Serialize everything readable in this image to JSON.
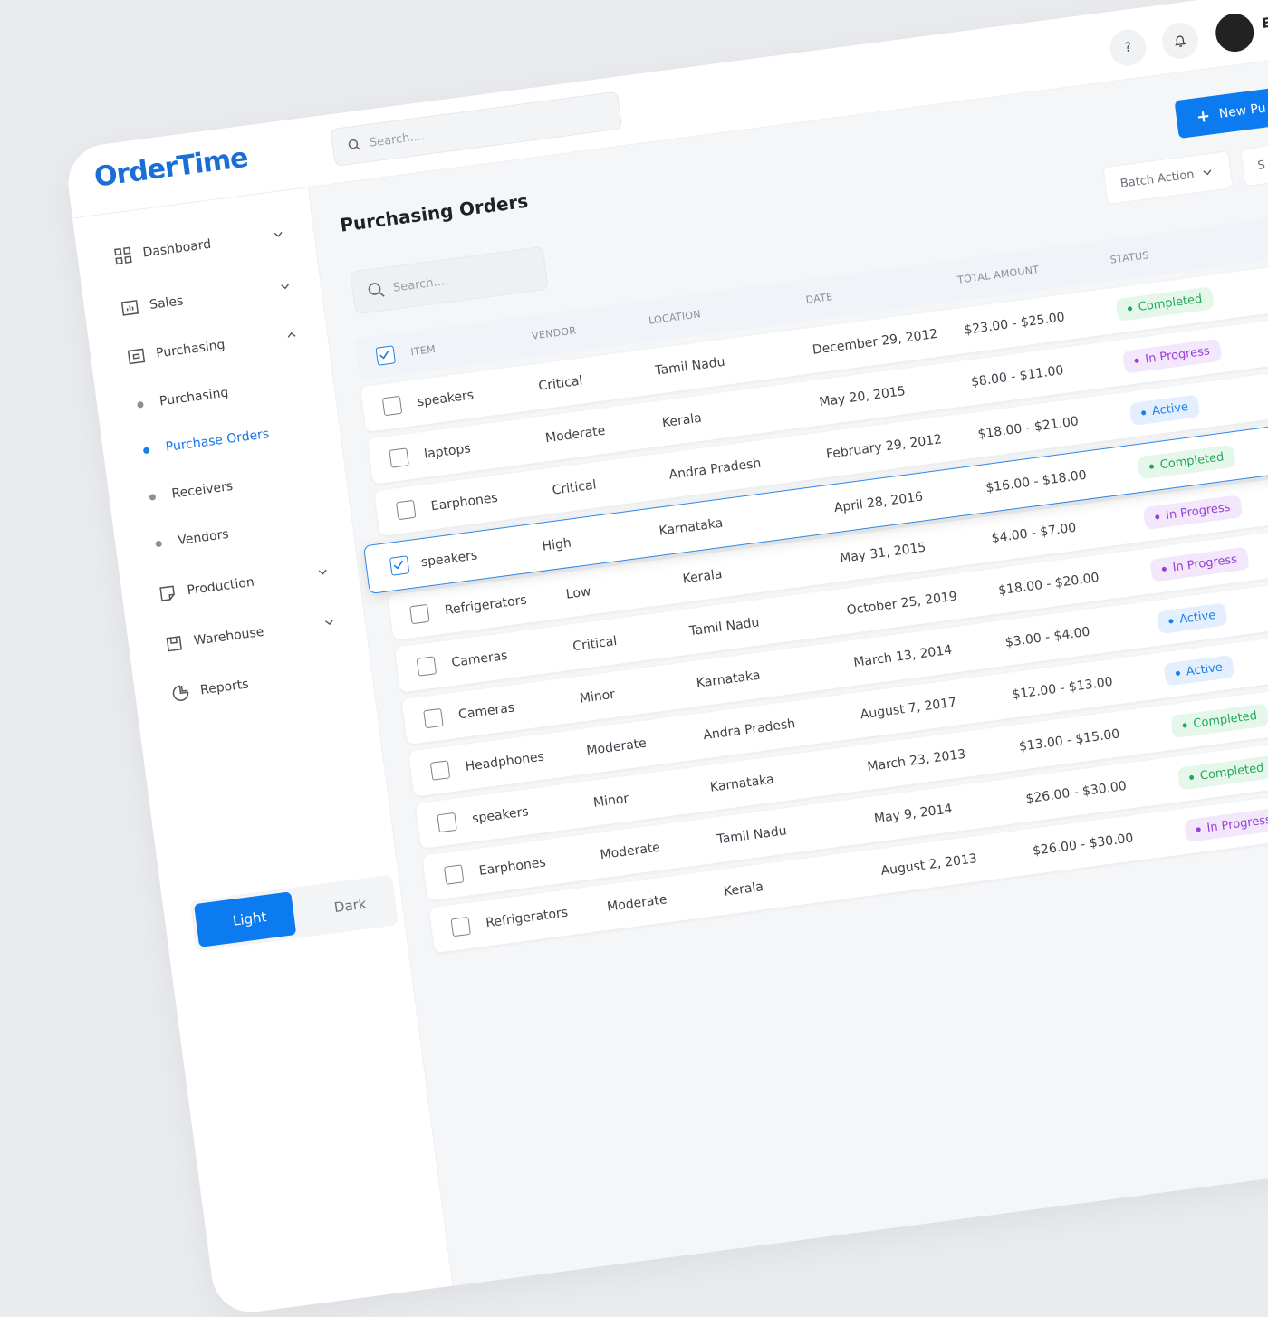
{
  "header": {
    "logo": "OrderTime",
    "search_placeholder": "Search....",
    "help": "?",
    "user_initial": "E"
  },
  "sidebar": {
    "nav": [
      {
        "label": "Dashboard",
        "icon": "grid",
        "chevron": "down",
        "level": 1
      },
      {
        "label": "Sales",
        "icon": "chart",
        "chevron": "down",
        "level": 1
      },
      {
        "label": "Purchasing",
        "icon": "box",
        "chevron": "up",
        "level": 1
      },
      {
        "label": "Purchasing",
        "level": 2
      },
      {
        "label": "Purchase Orders",
        "level": 2,
        "active": true
      },
      {
        "label": "Receivers",
        "level": 2
      },
      {
        "label": "Vendors",
        "level": 2
      },
      {
        "label": "Production",
        "icon": "tag",
        "chevron": "down",
        "level": 1
      },
      {
        "label": "Warehouse",
        "icon": "store",
        "chevron": "down",
        "level": 1
      },
      {
        "label": "Reports",
        "icon": "pie",
        "level": 1
      }
    ],
    "theme": {
      "light": "Light",
      "dark": "Dark",
      "selected": "light"
    }
  },
  "toolbar": {
    "new_button": "New Pu",
    "batch_action": "Batch Action",
    "partial_button": "S"
  },
  "page": {
    "title": "Purchasing Orders",
    "search_placeholder": "Search...."
  },
  "table": {
    "columns": [
      "ITEM",
      "VENDOR",
      "LOCATION",
      "DATE",
      "TOTAL AMOUNT",
      "STATUS"
    ],
    "all_checked": true,
    "rows": [
      {
        "cells": [
          "speakers",
          "Critical",
          "Tamil Nadu",
          "December 29, 2012",
          "$23.00 - $25.00",
          "Completed"
        ]
      },
      {
        "cells": [
          "laptops",
          "Moderate",
          "Kerala",
          "May 20, 2015",
          "$8.00 - $11.00",
          "In Progress"
        ]
      },
      {
        "cells": [
          "Earphones",
          "Critical",
          "Andra Pradesh",
          "February 29, 2012",
          "$18.00 - $21.00",
          "Active"
        ]
      },
      {
        "cells": [
          "speakers",
          "High",
          "Karnataka",
          "April 28, 2016",
          "$16.00 - $18.00",
          "Completed"
        ],
        "checked": true
      },
      {
        "cells": [
          "Refrigerators",
          "Low",
          "Kerala",
          "May 31, 2015",
          "$4.00 - $7.00",
          "In Progress"
        ]
      },
      {
        "cells": [
          "Cameras",
          "Critical",
          "Tamil Nadu",
          "October 25, 2019",
          "$18.00 - $20.00",
          "In Progress"
        ]
      },
      {
        "cells": [
          "Cameras",
          "Minor",
          "Karnataka",
          "March 13, 2014",
          "$3.00 - $4.00",
          "Active"
        ]
      },
      {
        "cells": [
          "Headphones",
          "Moderate",
          "Andra Pradesh",
          "August 7, 2017",
          "$12.00 - $13.00",
          "Active"
        ]
      },
      {
        "cells": [
          "speakers",
          "Minor",
          "Karnataka",
          "March 23, 2013",
          "$13.00 - $15.00",
          "Completed"
        ]
      },
      {
        "cells": [
          "Earphones",
          "Moderate",
          "Tamil Nadu",
          "May 9, 2014",
          "$26.00 - $30.00",
          "Completed"
        ]
      },
      {
        "cells": [
          "Refrigerators",
          "Moderate",
          "Kerala",
          "August 2, 2013",
          "$26.00 - $30.00",
          "In Progress"
        ]
      }
    ]
  }
}
